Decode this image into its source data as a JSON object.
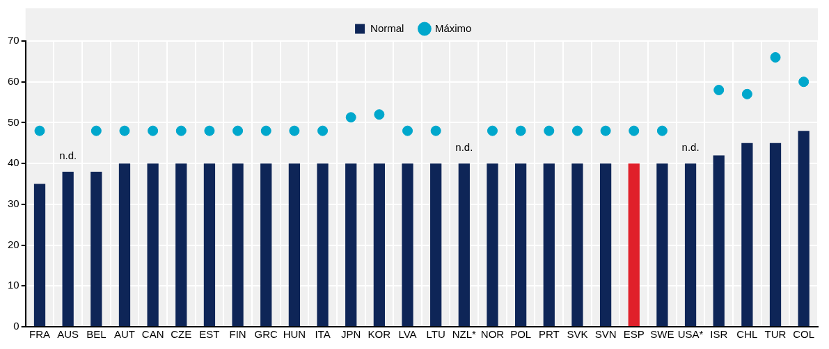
{
  "chart_data": {
    "type": "bar",
    "categories": [
      "FRA",
      "AUS",
      "BEL",
      "AUT",
      "CAN",
      "CZE",
      "EST",
      "FIN",
      "GRC",
      "HUN",
      "ITA",
      "JPN",
      "KOR",
      "LVA",
      "LTU",
      "NZL*",
      "NOR",
      "POL",
      "PRT",
      "SVK",
      "SVN",
      "ESP",
      "SWE",
      "USA*",
      "ISR",
      "CHL",
      "TUR",
      "COL"
    ],
    "series": [
      {
        "name": "Normal",
        "color": "#0e2557",
        "colors": [
          "#0e2557",
          "#0e2557",
          "#0e2557",
          "#0e2557",
          "#0e2557",
          "#0e2557",
          "#0e2557",
          "#0e2557",
          "#0e2557",
          "#0e2557",
          "#0e2557",
          "#0e2557",
          "#0e2557",
          "#0e2557",
          "#0e2557",
          "#0e2557",
          "#0e2557",
          "#0e2557",
          "#0e2557",
          "#0e2557",
          "#0e2557",
          "#e0202a",
          "#0e2557",
          "#0e2557",
          "#0e2557",
          "#0e2557",
          "#0e2557",
          "#0e2557"
        ],
        "values": [
          35,
          38,
          38,
          40,
          40,
          40,
          40,
          40,
          40,
          40,
          40,
          40,
          40,
          40,
          40,
          40,
          40,
          40,
          40,
          40,
          40,
          40,
          40,
          40,
          42,
          45,
          45,
          48
        ]
      },
      {
        "name": "Máximo",
        "type": "scatter",
        "color": "#00a7cc",
        "marker": "circle",
        "values": [
          48,
          null,
          48,
          48,
          48,
          48,
          48,
          48,
          48,
          48,
          48,
          51.3,
          52,
          48,
          48,
          null,
          48,
          48,
          48,
          48,
          48,
          48,
          48,
          null,
          58,
          57,
          66,
          60
        ]
      }
    ],
    "annotations": [
      "n.d.",
      "n.d.",
      "n.d."
    ],
    "ylim": [
      0,
      70
    ],
    "yticks": [
      0,
      10,
      20,
      30,
      40,
      50,
      60,
      70
    ],
    "grid": true,
    "legend": "top"
  }
}
